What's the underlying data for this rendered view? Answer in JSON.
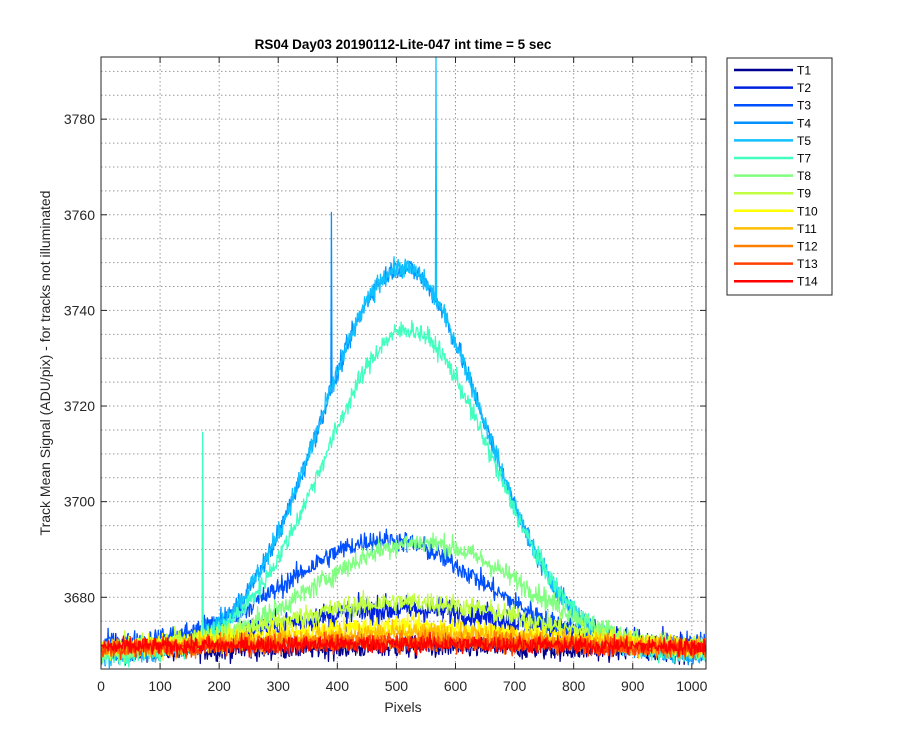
{
  "chart_data": {
    "type": "line",
    "title": "RS04 Day03 20190112-Lite-047 int time = 5 sec",
    "xlabel": "Pixels",
    "ylabel": "Track Mean Signal (ADU/pix) - for tracks not illuminated",
    "xlim": [
      0,
      1024
    ],
    "ylim": [
      3665,
      3793
    ],
    "xticks": [
      0,
      100,
      200,
      300,
      400,
      500,
      600,
      700,
      800,
      900,
      1000
    ],
    "xtick_labels": [
      "0",
      "100",
      "200",
      "300",
      "400",
      "500",
      "600",
      "700",
      "800",
      "900",
      "1000"
    ],
    "yticks": [
      3680,
      3700,
      3720,
      3740,
      3760,
      3780
    ],
    "ytick_labels": [
      "3680",
      "3700",
      "3720",
      "3740",
      "3760",
      "3780"
    ],
    "y_minor_grid_step": 5,
    "grid": true,
    "legend_position": "outside-right-top",
    "series": [
      {
        "name": "T1",
        "color": "#00008f",
        "center": 520,
        "baseline": 3668.5,
        "peak": 3669.5,
        "width": 400,
        "noise": 1.6,
        "spikes": []
      },
      {
        "name": "T2",
        "color": "#0020df",
        "center": 520,
        "baseline": 3668.5,
        "peak": 3677.5,
        "width": 320,
        "noise": 2.0,
        "spikes": []
      },
      {
        "name": "T3",
        "color": "#0050ff",
        "center": 480,
        "baseline": 3670.0,
        "peak": 3692.0,
        "width": 230,
        "noise": 1.6,
        "spikes": []
      },
      {
        "name": "T4",
        "color": "#0090ff",
        "center": 510,
        "baseline": 3668.0,
        "peak": 3749.0,
        "width": 195,
        "noise": 1.5,
        "spikes": [
          {
            "x": 390,
            "y": 3760.5
          }
        ]
      },
      {
        "name": "T5",
        "color": "#10c0ff",
        "center": 510,
        "baseline": 3668.0,
        "peak": 3749.0,
        "width": 195,
        "noise": 1.5,
        "spikes": [
          {
            "x": 567,
            "y": 3793
          }
        ]
      },
      {
        "name": "T7",
        "color": "#40ffbf",
        "center": 520,
        "baseline": 3668.0,
        "peak": 3736.0,
        "width": 200,
        "noise": 1.5,
        "spikes": [
          {
            "x": 172,
            "y": 3714.5
          }
        ]
      },
      {
        "name": "T8",
        "color": "#80ff80",
        "center": 540,
        "baseline": 3668.5,
        "peak": 3691.5,
        "width": 250,
        "noise": 1.6,
        "spikes": []
      },
      {
        "name": "T9",
        "color": "#bfff40",
        "center": 520,
        "baseline": 3669.0,
        "peak": 3679.0,
        "width": 300,
        "noise": 1.6,
        "spikes": []
      },
      {
        "name": "T10",
        "color": "#ffff00",
        "center": 520,
        "baseline": 3669.0,
        "peak": 3674.0,
        "width": 330,
        "noise": 1.5,
        "spikes": []
      },
      {
        "name": "T11",
        "color": "#ffbf00",
        "center": 520,
        "baseline": 3669.0,
        "peak": 3672.5,
        "width": 350,
        "noise": 1.5,
        "spikes": []
      },
      {
        "name": "T12",
        "color": "#ff8000",
        "center": 520,
        "baseline": 3669.0,
        "peak": 3671.0,
        "width": 380,
        "noise": 1.4,
        "spikes": []
      },
      {
        "name": "T13",
        "color": "#ff4000",
        "center": 520,
        "baseline": 3669.0,
        "peak": 3670.5,
        "width": 400,
        "noise": 1.4,
        "spikes": []
      },
      {
        "name": "T14",
        "color": "#ff0000",
        "center": 520,
        "baseline": 3669.5,
        "peak": 3670.2,
        "width": 400,
        "noise": 1.3,
        "spikes": []
      }
    ]
  }
}
